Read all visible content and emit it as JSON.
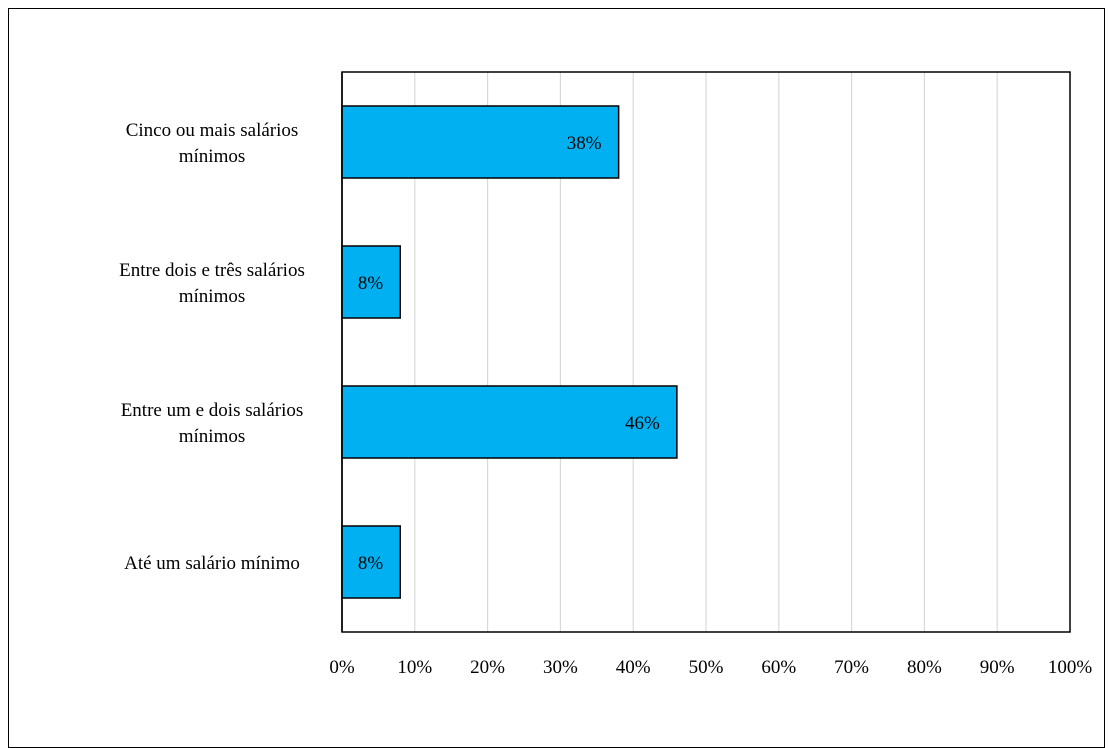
{
  "chart_data": {
    "type": "bar",
    "orientation": "horizontal",
    "categories": [
      [
        "Cinco ou mais salários",
        "mínimos"
      ],
      [
        "Entre dois e três salários",
        "mínimos"
      ],
      [
        "Entre um e dois salários",
        "mínimos"
      ],
      [
        "Até um salário mínimo"
      ]
    ],
    "values": [
      38,
      8,
      46,
      8
    ],
    "data_labels": [
      "38%",
      "8%",
      "46%",
      "8%"
    ],
    "xlim": [
      0,
      100
    ],
    "xticks": [
      0,
      10,
      20,
      30,
      40,
      50,
      60,
      70,
      80,
      90,
      100
    ],
    "xtick_labels": [
      "0%",
      "10%",
      "20%",
      "30%",
      "40%",
      "50%",
      "60%",
      "70%",
      "80%",
      "90%",
      "100%"
    ],
    "grid": "vertical",
    "legend": "none",
    "colors": {
      "bar_fill": "#00B0F0",
      "bar_stroke": "#000000",
      "grid": "#D9D9D9",
      "axis": "#000000"
    }
  }
}
